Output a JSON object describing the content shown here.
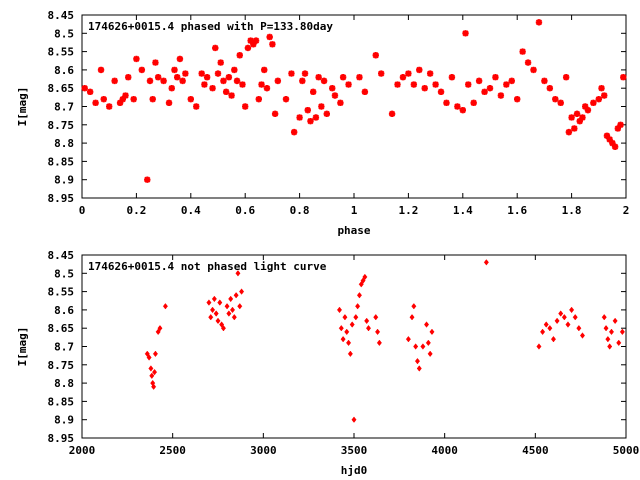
{
  "chart_data": [
    {
      "type": "scatter",
      "title": "174626+0015.4 phased with P=133.80day",
      "xlabel": "phase",
      "ylabel": "I[mag]",
      "xlim": [
        0,
        2
      ],
      "ylim": [
        8.95,
        8.45
      ],
      "y_inverted": true,
      "xticks": [
        "0",
        "0.2",
        "0.4",
        "0.6",
        "0.8",
        "1",
        "1.2",
        "1.4",
        "1.6",
        "1.8",
        "2"
      ],
      "yticks": [
        "8.45",
        "8.5",
        "8.55",
        "8.6",
        "8.65",
        "8.7",
        "8.75",
        "8.8",
        "8.85",
        "8.9",
        "8.95"
      ],
      "marker_color": "#ff0000",
      "grid": false,
      "points": [
        [
          0.01,
          8.65
        ],
        [
          0.03,
          8.66
        ],
        [
          0.05,
          8.69
        ],
        [
          0.07,
          8.6
        ],
        [
          0.08,
          8.68
        ],
        [
          0.1,
          8.7
        ],
        [
          0.12,
          8.63
        ],
        [
          0.14,
          8.69
        ],
        [
          0.15,
          8.68
        ],
        [
          0.16,
          8.67
        ],
        [
          0.17,
          8.62
        ],
        [
          0.19,
          8.68
        ],
        [
          0.2,
          8.57
        ],
        [
          0.22,
          8.6
        ],
        [
          0.24,
          8.9
        ],
        [
          0.25,
          8.63
        ],
        [
          0.26,
          8.68
        ],
        [
          0.27,
          8.58
        ],
        [
          0.28,
          8.62
        ],
        [
          0.3,
          8.63
        ],
        [
          0.32,
          8.69
        ],
        [
          0.33,
          8.65
        ],
        [
          0.34,
          8.6
        ],
        [
          0.35,
          8.62
        ],
        [
          0.36,
          8.57
        ],
        [
          0.37,
          8.63
        ],
        [
          0.38,
          8.61
        ],
        [
          0.4,
          8.68
        ],
        [
          0.42,
          8.7
        ],
        [
          0.44,
          8.61
        ],
        [
          0.45,
          8.64
        ],
        [
          0.46,
          8.62
        ],
        [
          0.48,
          8.65
        ],
        [
          0.49,
          8.54
        ],
        [
          0.5,
          8.61
        ],
        [
          0.51,
          8.58
        ],
        [
          0.52,
          8.63
        ],
        [
          0.53,
          8.66
        ],
        [
          0.54,
          8.62
        ],
        [
          0.55,
          8.67
        ],
        [
          0.56,
          8.6
        ],
        [
          0.57,
          8.63
        ],
        [
          0.58,
          8.56
        ],
        [
          0.59,
          8.64
        ],
        [
          0.6,
          8.7
        ],
        [
          0.61,
          8.54
        ],
        [
          0.62,
          8.52
        ],
        [
          0.63,
          8.53
        ],
        [
          0.64,
          8.52
        ],
        [
          0.65,
          8.68
        ],
        [
          0.66,
          8.64
        ],
        [
          0.67,
          8.6
        ],
        [
          0.68,
          8.65
        ],
        [
          0.69,
          8.51
        ],
        [
          0.7,
          8.53
        ],
        [
          0.71,
          8.72
        ],
        [
          0.72,
          8.63
        ],
        [
          0.75,
          8.68
        ],
        [
          0.77,
          8.61
        ],
        [
          0.78,
          8.77
        ],
        [
          0.8,
          8.73
        ],
        [
          0.81,
          8.63
        ],
        [
          0.82,
          8.61
        ],
        [
          0.83,
          8.71
        ],
        [
          0.84,
          8.74
        ],
        [
          0.85,
          8.66
        ],
        [
          0.86,
          8.73
        ],
        [
          0.87,
          8.62
        ],
        [
          0.88,
          8.7
        ],
        [
          0.89,
          8.63
        ],
        [
          0.9,
          8.72
        ],
        [
          0.92,
          8.65
        ],
        [
          0.93,
          8.67
        ],
        [
          0.95,
          8.69
        ],
        [
          0.96,
          8.62
        ],
        [
          0.98,
          8.64
        ],
        [
          1.02,
          8.62
        ],
        [
          1.04,
          8.66
        ],
        [
          1.08,
          8.56
        ],
        [
          1.1,
          8.61
        ],
        [
          1.14,
          8.72
        ],
        [
          1.16,
          8.64
        ],
        [
          1.18,
          8.62
        ],
        [
          1.2,
          8.61
        ],
        [
          1.22,
          8.64
        ],
        [
          1.24,
          8.6
        ],
        [
          1.26,
          8.65
        ],
        [
          1.28,
          8.61
        ],
        [
          1.3,
          8.64
        ],
        [
          1.32,
          8.66
        ],
        [
          1.34,
          8.69
        ],
        [
          1.36,
          8.62
        ],
        [
          1.38,
          8.7
        ],
        [
          1.4,
          8.71
        ],
        [
          1.41,
          8.5
        ],
        [
          1.42,
          8.64
        ],
        [
          1.44,
          8.69
        ],
        [
          1.46,
          8.63
        ],
        [
          1.48,
          8.66
        ],
        [
          1.5,
          8.65
        ],
        [
          1.52,
          8.62
        ],
        [
          1.54,
          8.67
        ],
        [
          1.56,
          8.64
        ],
        [
          1.58,
          8.63
        ],
        [
          1.6,
          8.68
        ],
        [
          1.62,
          8.55
        ],
        [
          1.64,
          8.58
        ],
        [
          1.66,
          8.6
        ],
        [
          1.68,
          8.47
        ],
        [
          1.7,
          8.63
        ],
        [
          1.72,
          8.65
        ],
        [
          1.74,
          8.68
        ],
        [
          1.76,
          8.69
        ],
        [
          1.78,
          8.62
        ],
        [
          1.79,
          8.77
        ],
        [
          1.8,
          8.73
        ],
        [
          1.81,
          8.76
        ],
        [
          1.82,
          8.72
        ],
        [
          1.83,
          8.74
        ],
        [
          1.84,
          8.73
        ],
        [
          1.85,
          8.7
        ],
        [
          1.86,
          8.71
        ],
        [
          1.88,
          8.69
        ],
        [
          1.9,
          8.68
        ],
        [
          1.91,
          8.65
        ],
        [
          1.92,
          8.67
        ],
        [
          1.93,
          8.78
        ],
        [
          1.94,
          8.79
        ],
        [
          1.95,
          8.8
        ],
        [
          1.96,
          8.81
        ],
        [
          1.97,
          8.76
        ],
        [
          1.98,
          8.75
        ],
        [
          1.99,
          8.62
        ]
      ]
    },
    {
      "type": "scatter",
      "title": "174626+0015.4 not phased light curve",
      "xlabel": "hjd0",
      "ylabel": "I[mag]",
      "xlim": [
        2000,
        5000
      ],
      "ylim": [
        8.95,
        8.45
      ],
      "y_inverted": true,
      "xticks": [
        "2000",
        "2500",
        "3000",
        "3500",
        "4000",
        "4500",
        "5000"
      ],
      "yticks": [
        "8.45",
        "8.5",
        "8.55",
        "8.6",
        "8.65",
        "8.7",
        "8.75",
        "8.8",
        "8.85",
        "8.9",
        "8.95"
      ],
      "marker_color": "#ff0000",
      "grid": false,
      "points": [
        [
          2360,
          8.72
        ],
        [
          2370,
          8.73
        ],
        [
          2380,
          8.76
        ],
        [
          2385,
          8.78
        ],
        [
          2390,
          8.8
        ],
        [
          2395,
          8.81
        ],
        [
          2400,
          8.77
        ],
        [
          2405,
          8.72
        ],
        [
          2420,
          8.66
        ],
        [
          2430,
          8.65
        ],
        [
          2460,
          8.59
        ],
        [
          2700,
          8.58
        ],
        [
          2710,
          8.62
        ],
        [
          2720,
          8.6
        ],
        [
          2730,
          8.57
        ],
        [
          2740,
          8.61
        ],
        [
          2750,
          8.63
        ],
        [
          2760,
          8.58
        ],
        [
          2770,
          8.64
        ],
        [
          2780,
          8.65
        ],
        [
          2800,
          8.59
        ],
        [
          2810,
          8.61
        ],
        [
          2820,
          8.57
        ],
        [
          2830,
          8.6
        ],
        [
          2840,
          8.62
        ],
        [
          2850,
          8.56
        ],
        [
          2860,
          8.5
        ],
        [
          2870,
          8.59
        ],
        [
          2880,
          8.55
        ],
        [
          3420,
          8.6
        ],
        [
          3430,
          8.65
        ],
        [
          3440,
          8.68
        ],
        [
          3450,
          8.62
        ],
        [
          3460,
          8.66
        ],
        [
          3470,
          8.69
        ],
        [
          3480,
          8.72
        ],
        [
          3490,
          8.64
        ],
        [
          3500,
          8.9
        ],
        [
          3510,
          8.62
        ],
        [
          3520,
          8.59
        ],
        [
          3530,
          8.56
        ],
        [
          3540,
          8.53
        ],
        [
          3550,
          8.52
        ],
        [
          3560,
          8.51
        ],
        [
          3570,
          8.63
        ],
        [
          3580,
          8.65
        ],
        [
          3620,
          8.62
        ],
        [
          3630,
          8.66
        ],
        [
          3640,
          8.69
        ],
        [
          3800,
          8.68
        ],
        [
          3820,
          8.62
        ],
        [
          3830,
          8.59
        ],
        [
          3840,
          8.7
        ],
        [
          3850,
          8.74
        ],
        [
          3860,
          8.76
        ],
        [
          3880,
          8.7
        ],
        [
          3900,
          8.64
        ],
        [
          3910,
          8.69
        ],
        [
          3920,
          8.72
        ],
        [
          3930,
          8.66
        ],
        [
          4230,
          8.47
        ],
        [
          4520,
          8.7
        ],
        [
          4540,
          8.66
        ],
        [
          4560,
          8.64
        ],
        [
          4580,
          8.65
        ],
        [
          4600,
          8.68
        ],
        [
          4620,
          8.63
        ],
        [
          4640,
          8.61
        ],
        [
          4660,
          8.62
        ],
        [
          4680,
          8.64
        ],
        [
          4700,
          8.6
        ],
        [
          4720,
          8.62
        ],
        [
          4740,
          8.65
        ],
        [
          4760,
          8.67
        ],
        [
          4880,
          8.62
        ],
        [
          4890,
          8.65
        ],
        [
          4900,
          8.68
        ],
        [
          4910,
          8.7
        ],
        [
          4920,
          8.66
        ],
        [
          4940,
          8.63
        ],
        [
          4960,
          8.69
        ],
        [
          4980,
          8.66
        ]
      ]
    }
  ]
}
